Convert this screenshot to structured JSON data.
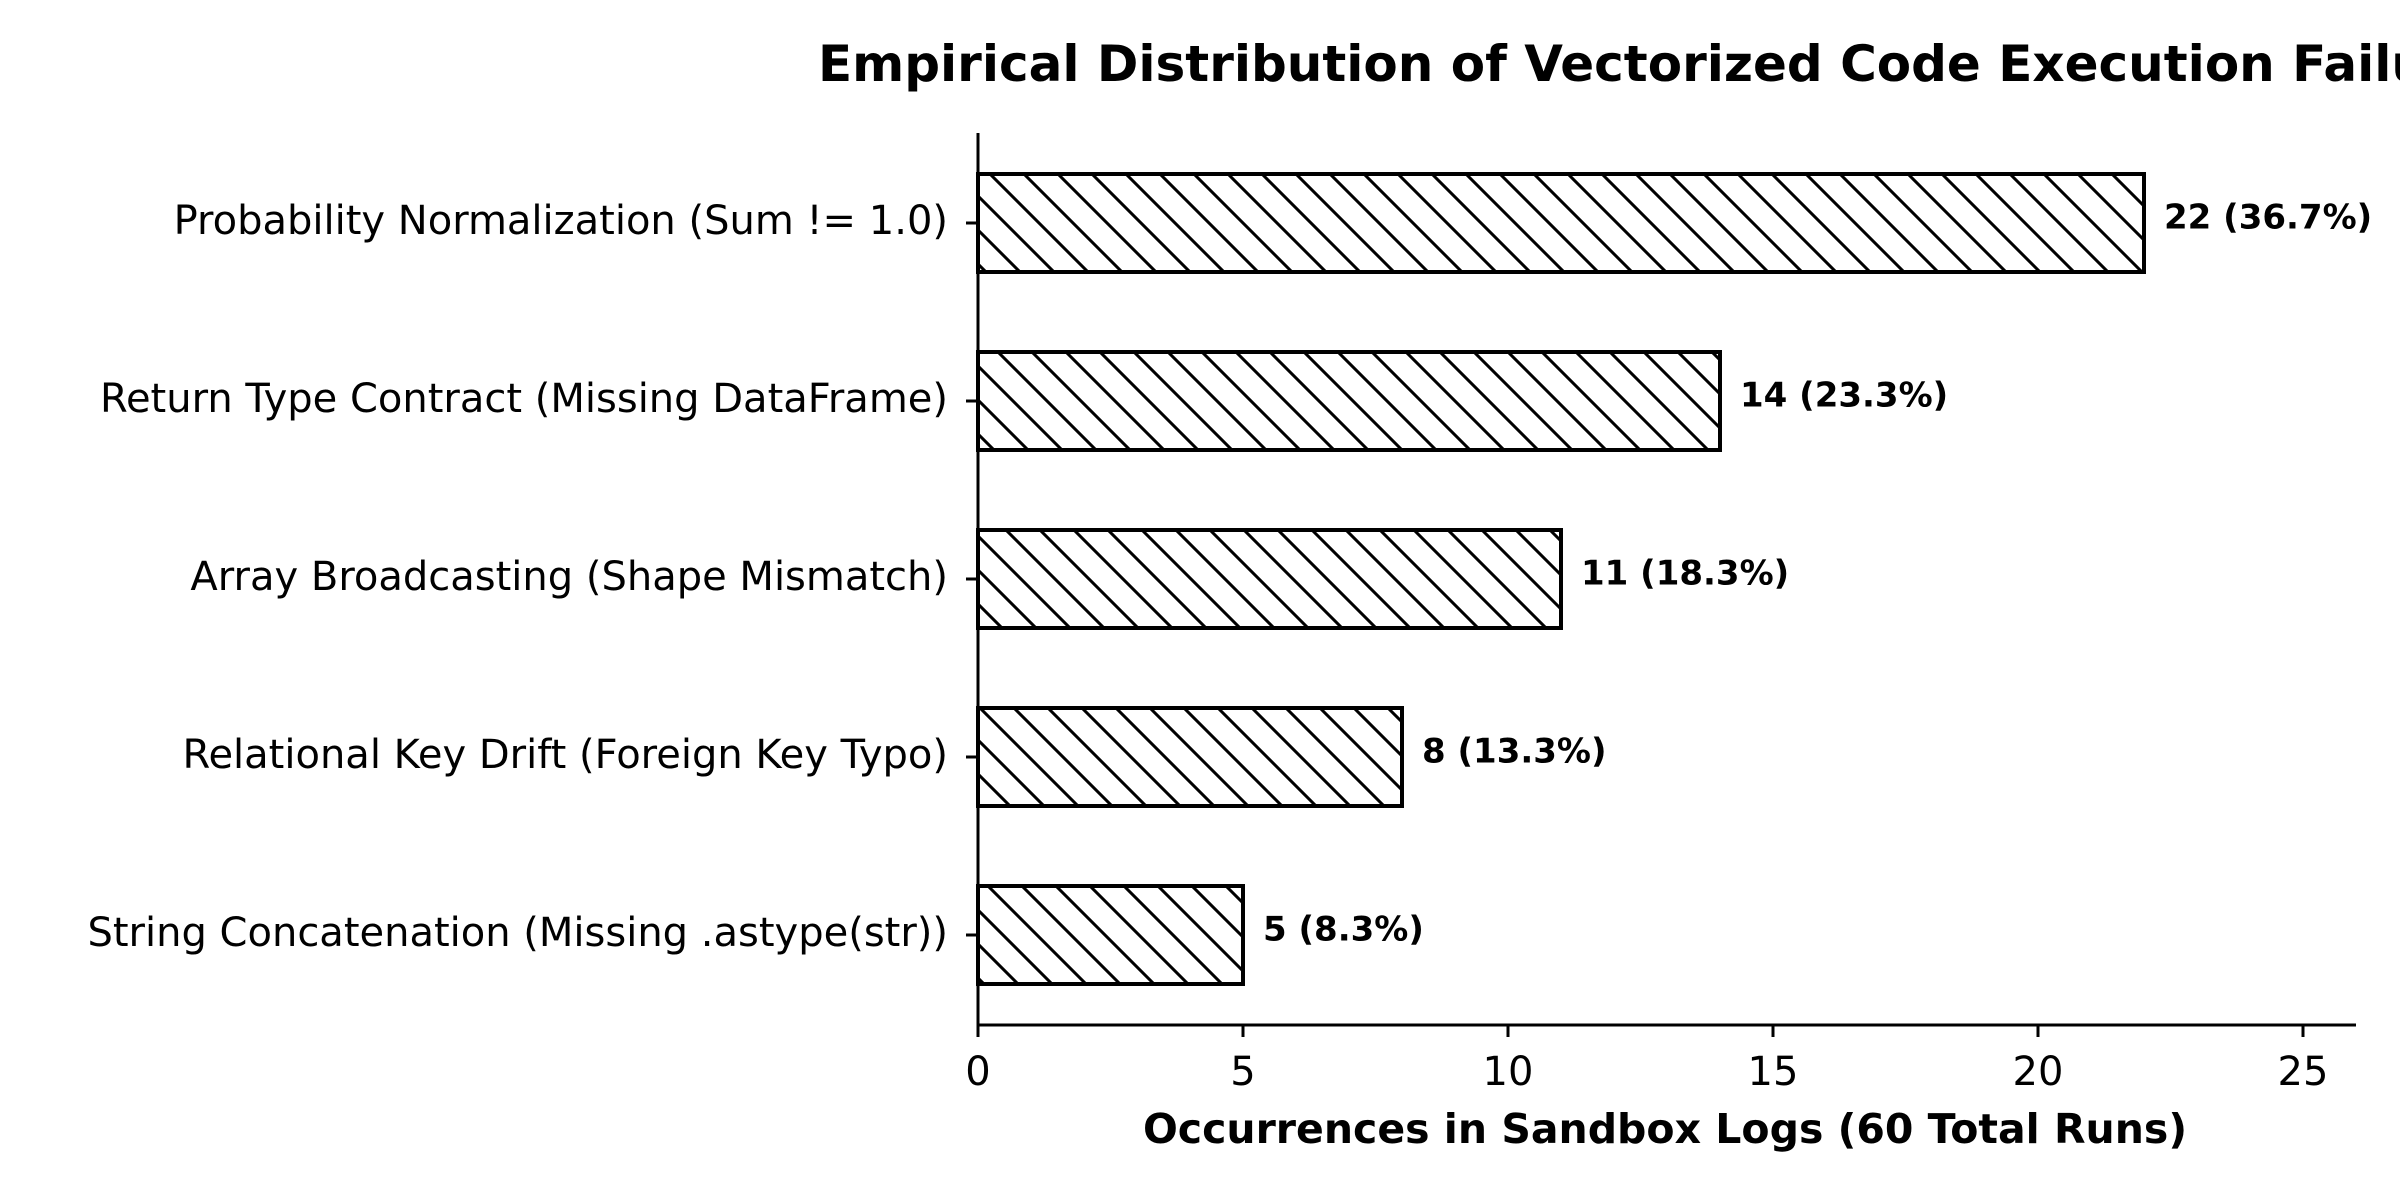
{
  "chart_data": {
    "type": "bar",
    "orientation": "horizontal",
    "title": "Empirical Distribution of Vectorized Code Execution Failu",
    "xlabel": "Occurrences in Sandbox Logs (60 Total Runs)",
    "ylabel": "",
    "categories": [
      "Probability Normalization (Sum != 1.0)",
      "Return Type Contract (Missing DataFrame)",
      "Array Broadcasting (Shape Mismatch)",
      "Relational Key Drift (Foreign Key Typo)",
      "String Concatenation (Missing .astype(str))"
    ],
    "values": [
      22,
      14,
      11,
      8,
      5
    ],
    "data_labels": [
      "22 (36.7%)",
      "14 (23.3%)",
      "11 (18.3%)",
      "8 (13.3%)",
      "5 (8.3%)"
    ],
    "xlim": [
      0,
      26
    ],
    "xticks": [
      0,
      5,
      10,
      15,
      20,
      25
    ],
    "hatch": "diagonal",
    "bar_fill": "#ffffff",
    "bar_edge": "#000000",
    "grid": false,
    "legend": "none"
  }
}
